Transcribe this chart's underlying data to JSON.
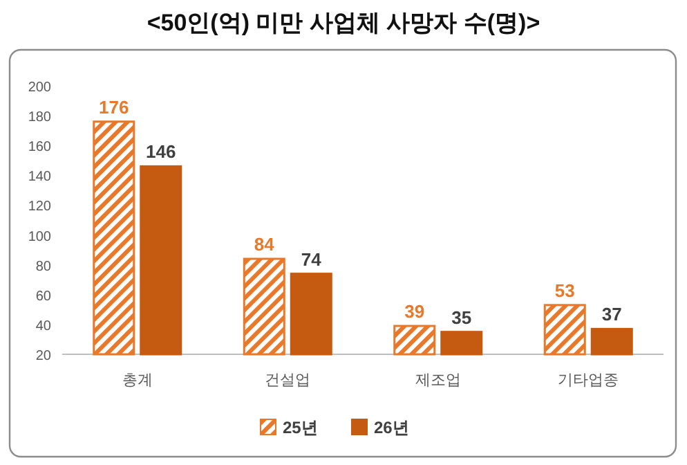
{
  "chart_data": {
    "type": "bar",
    "title": "<50인(억) 미만 사업체 사망자 수(명)>",
    "categories": [
      "총계",
      "건설업",
      "제조업",
      "기타업종"
    ],
    "series": [
      {
        "name": "25년",
        "color": "#e8792a",
        "values": [
          176,
          84,
          39,
          53
        ]
      },
      {
        "name": "26년",
        "color": "#c55a11",
        "values": [
          146,
          74,
          35,
          37
        ]
      }
    ],
    "ylim": [
      20,
      200
    ],
    "yticks": [
      20,
      40,
      60,
      80,
      100,
      120,
      140,
      160,
      180,
      200
    ],
    "data_labels": true,
    "legend": "bottom",
    "grid": false
  }
}
